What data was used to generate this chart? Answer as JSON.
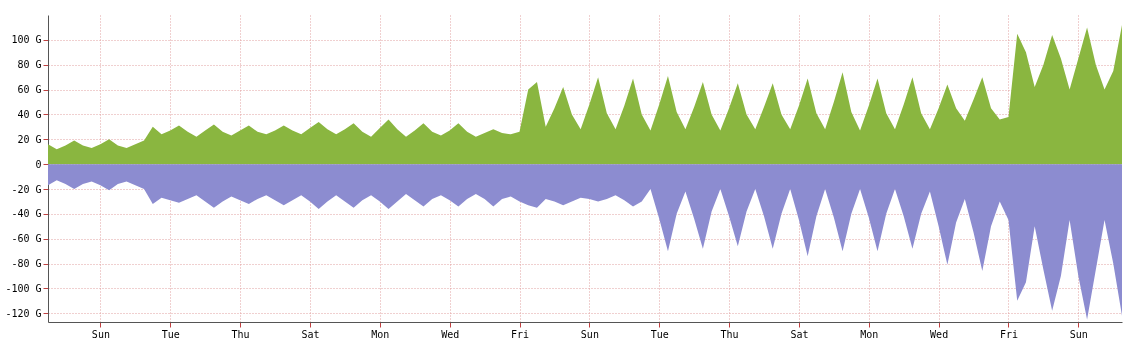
{
  "chart_data": {
    "type": "area",
    "categories": [
      null,
      null,
      null,
      null,
      null,
      null,
      "Sun",
      null,
      null,
      null,
      null,
      null,
      null,
      null,
      "Tue",
      null,
      null,
      null,
      null,
      null,
      null,
      null,
      "Thu",
      null,
      null,
      null,
      null,
      null,
      null,
      null,
      "Sat",
      null,
      null,
      null,
      null,
      null,
      null,
      null,
      "Mon",
      null,
      null,
      null,
      null,
      null,
      null,
      null,
      "Wed",
      null,
      null,
      null,
      null,
      null,
      null,
      null,
      "Fri",
      null,
      null,
      null,
      null,
      null,
      null,
      null,
      "Sun",
      null,
      null,
      null,
      null,
      null,
      null,
      null,
      "Tue",
      null,
      null,
      null,
      null,
      null,
      null,
      null,
      "Thu",
      null,
      null,
      null,
      null,
      null,
      null,
      null,
      "Sat",
      null,
      null,
      null,
      null,
      null,
      null,
      null,
      "Mon",
      null,
      null,
      null,
      null,
      null,
      null,
      null,
      "Wed",
      null,
      null,
      null,
      null,
      null,
      null,
      null,
      "Fri",
      null,
      null,
      null,
      null,
      null,
      null,
      null,
      "Sun",
      null,
      null,
      null,
      null,
      null
    ],
    "series": [
      {
        "color": "#8ab640",
        "values": [
          16,
          12,
          15,
          19,
          15,
          13,
          16,
          20,
          15,
          13,
          16,
          19,
          30,
          24,
          27,
          31,
          26,
          22,
          27,
          32,
          26,
          23,
          27,
          31,
          26,
          24,
          27,
          31,
          27,
          24,
          29,
          34,
          28,
          24,
          28,
          33,
          26,
          22,
          29,
          36,
          28,
          22,
          27,
          33,
          26,
          23,
          27,
          33,
          26,
          22,
          25,
          28,
          25,
          24,
          26,
          60,
          66,
          30,
          45,
          62,
          40,
          28,
          48,
          70,
          41,
          28,
          47,
          69,
          40,
          27,
          48,
          71,
          42,
          28,
          46,
          66,
          40,
          27,
          45,
          65,
          40,
          28,
          46,
          65,
          40,
          28,
          47,
          69,
          41,
          28,
          50,
          74,
          42,
          27,
          47,
          69,
          41,
          28,
          48,
          70,
          41,
          28,
          45,
          64,
          45,
          35,
          52,
          70,
          45,
          36,
          38,
          105,
          90,
          62,
          80,
          104,
          85,
          60,
          85,
          110,
          80,
          60,
          75,
          112
        ]
      },
      {
        "color": "#8c8cd0",
        "values": [
          -17,
          -13,
          -16,
          -20,
          -16,
          -14,
          -17,
          -21,
          -16,
          -14,
          -17,
          -20,
          -32,
          -27,
          -29,
          -31,
          -28,
          -25,
          -30,
          -35,
          -30,
          -26,
          -29,
          -32,
          -28,
          -25,
          -29,
          -33,
          -29,
          -25,
          -30,
          -36,
          -30,
          -25,
          -30,
          -35,
          -29,
          -25,
          -30,
          -36,
          -30,
          -24,
          -29,
          -34,
          -28,
          -25,
          -29,
          -34,
          -28,
          -24,
          -28,
          -34,
          -28,
          -26,
          -30,
          -33,
          -35,
          -28,
          -30,
          -33,
          -30,
          -27,
          -28,
          -30,
          -28,
          -25,
          -29,
          -34,
          -30,
          -20,
          -44,
          -70,
          -40,
          -22,
          -44,
          -68,
          -38,
          -20,
          -42,
          -66,
          -38,
          -20,
          -42,
          -68,
          -40,
          -20,
          -45,
          -74,
          -42,
          -20,
          -43,
          -70,
          -40,
          -20,
          -43,
          -70,
          -40,
          -20,
          -42,
          -68,
          -40,
          -22,
          -50,
          -81,
          -47,
          -28,
          -55,
          -86,
          -50,
          -30,
          -45,
          -110,
          -95,
          -50,
          -85,
          -118,
          -90,
          -45,
          -90,
          -125,
          -85,
          -45,
          -80,
          -122
        ]
      }
    ],
    "ylim": [
      -127,
      120
    ],
    "yticks": [
      {
        "value": -120,
        "label": "-120 G"
      },
      {
        "value": -100,
        "label": "-100 G"
      },
      {
        "value": -80,
        "label": "-80 G"
      },
      {
        "value": -60,
        "label": "-60 G"
      },
      {
        "value": -40,
        "label": "-40 G"
      },
      {
        "value": -20,
        "label": "-20 G"
      },
      0,
      {
        "value": 20,
        "label": "20 G"
      },
      {
        "value": 40,
        "label": "40 G"
      },
      {
        "value": 60,
        "label": "60 G"
      },
      {
        "value": 80,
        "label": "80 G"
      },
      {
        "value": 100,
        "label": "100 G"
      }
    ],
    "grid": true
  }
}
